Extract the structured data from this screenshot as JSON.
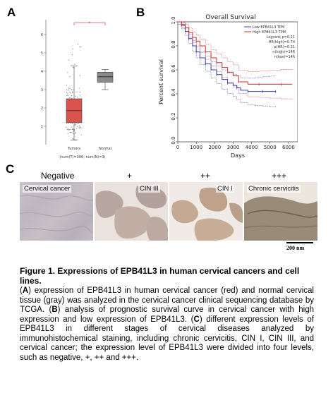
{
  "panel_labels": {
    "a": "A",
    "b": "B",
    "c": "C"
  },
  "panel_a": {
    "significance_mark": "*",
    "y_ticks": [
      "1",
      "2",
      "3",
      "4",
      "5",
      "6"
    ],
    "x_labels": [
      "Tumors",
      "Normal"
    ],
    "footnote": "(num(T)=306; num(N)=3)",
    "colors": {
      "tumor": "#d9534f",
      "normal": "#8a8a8a"
    }
  },
  "panel_b": {
    "title": "Overall Survival",
    "legend": {
      "low": "Low EPB41L3 TPM",
      "high": "High EPB41L3 TPM",
      "stats": [
        "Logrank p=0.21",
        "HR(high)=0.74",
        "p(HR)=0.21",
        "n(high)=146",
        "n(low)=146"
      ]
    },
    "y_label": "Percent survival",
    "x_label": "Days",
    "colors": {
      "low": "#3040b0",
      "high": "#d03030"
    }
  },
  "chart_data": [
    {
      "type": "box",
      "categories": [
        "Tumors",
        "Normal"
      ],
      "series": [
        {
          "values": [
            {
              "min": 0.25,
              "q1": 1.2,
              "median": 1.85,
              "q3": 2.5,
              "max": 4.3
            },
            {
              "min": 3.0,
              "q1": 3.4,
              "median": 3.7,
              "q3": 3.95,
              "max": 4.1
            }
          ]
        }
      ],
      "ylim": [
        0,
        6.5
      ]
    },
    {
      "type": "line",
      "title": "Overall Survival",
      "xlabel": "Days",
      "ylabel": "Percent survival",
      "xlim": [
        0,
        6500
      ],
      "ylim": [
        0,
        1.0
      ],
      "x_ticks": [
        "0",
        "1000",
        "2000",
        "3000",
        "4000",
        "5000",
        "6000"
      ],
      "y_ticks": [
        "0.0",
        "0.2",
        "0.4",
        "0.6",
        "0.8",
        "1.0"
      ],
      "series": [
        {
          "name": "Low EPB41L3 TPM",
          "x": [
            0,
            200,
            400,
            600,
            800,
            1000,
            1200,
            1500,
            1800,
            2100,
            2400,
            2700,
            3000,
            3200,
            3400,
            3800,
            4200,
            4600,
            5000,
            5300
          ],
          "y": [
            1.0,
            0.97,
            0.92,
            0.86,
            0.8,
            0.75,
            0.7,
            0.65,
            0.6,
            0.56,
            0.52,
            0.49,
            0.47,
            0.45,
            0.43,
            0.42,
            0.42,
            0.42,
            0.42,
            0.42
          ]
        },
        {
          "name": "High EPB41L3 TPM",
          "x": [
            0,
            200,
            400,
            600,
            800,
            1000,
            1200,
            1500,
            1800,
            2100,
            2400,
            2700,
            3000,
            3300,
            3800,
            4400,
            5000,
            5600,
            6200
          ],
          "y": [
            1.0,
            0.98,
            0.95,
            0.91,
            0.87,
            0.84,
            0.8,
            0.75,
            0.7,
            0.66,
            0.62,
            0.58,
            0.55,
            0.5,
            0.48,
            0.48,
            0.48,
            0.48,
            0.48
          ]
        }
      ]
    }
  ],
  "panel_c": {
    "levels": [
      "Negative",
      "+",
      "++",
      "+++"
    ],
    "images": [
      {
        "tag": "Cervical  cancer"
      },
      {
        "tag": "CIN III"
      },
      {
        "tag": "CIN I"
      },
      {
        "tag": "Chronic cervicitis"
      }
    ],
    "scale_bar": "200 nm"
  },
  "caption": {
    "title": "Figure 1. Expressions of EPB41L3 in human cervical cancers and cell lines.",
    "letters": [
      "A",
      "B",
      "C"
    ],
    "body_a": ") expression of EPB41L3 in human cervical cancer (red) and normal cervical tissue (gray) was analyzed in the cervical cancer clinical sequencing database by TCGA. (",
    "body_b": ") analysis of prognostic survival curve in cervical cancer with high expression and low expression of EPB41L3. (",
    "body_c": ") different expression levels of EPB41L3 in different stages of cervical diseases analyzed by immunohistochemical staining, including chronic cervicitis, CIN I, CIN III, and cervical cancer; the expression level of EPB41L3 were divided into four levels, such as negative, +, ++ and +++."
  }
}
